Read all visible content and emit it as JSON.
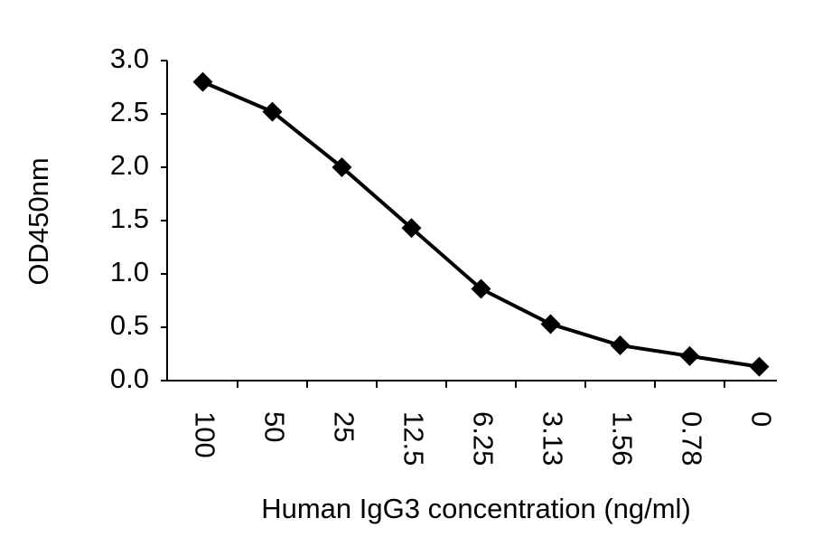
{
  "chart_data": {
    "type": "line",
    "x_label": "Human IgG3 concentration (ng/ml)",
    "y_label": "OD450nm",
    "categories": [
      "100",
      "50",
      "25",
      "12.5",
      "6.25",
      "3.13",
      "1.56",
      "0.78",
      "0"
    ],
    "series": [
      {
        "color": "#000000",
        "values": [
          2.8,
          2.52,
          2.0,
          1.43,
          0.86,
          0.53,
          0.33,
          0.23,
          0.13
        ]
      }
    ],
    "ylim": [
      0,
      3
    ],
    "yticks": [
      {
        "value": 0,
        "label": "0.0"
      },
      0.5,
      {
        "value": 1,
        "label": "1.0"
      },
      1.5,
      {
        "value": 2,
        "label": "2.0"
      },
      2.5,
      {
        "value": 3,
        "label": "3.0"
      }
    ]
  }
}
